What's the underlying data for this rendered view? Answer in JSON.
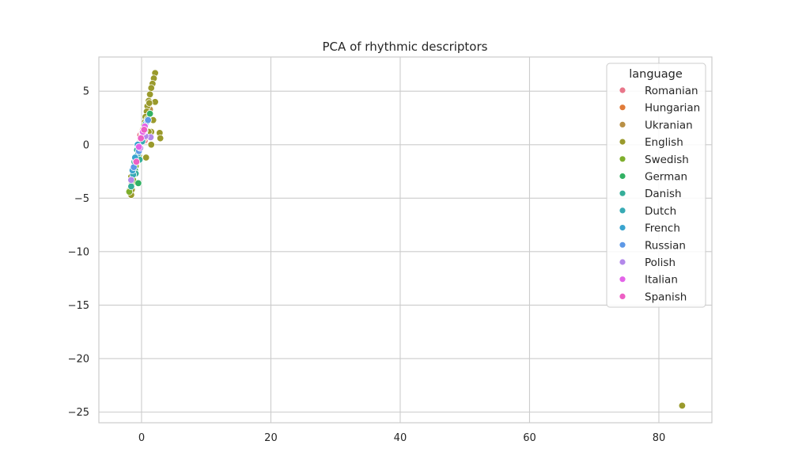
{
  "chart_data": {
    "type": "scatter",
    "title": "PCA of rhythmic descriptors",
    "xlabel": "",
    "ylabel": "",
    "xlim": [
      -6.6,
      88.2
    ],
    "ylim": [
      -26.0,
      8.2
    ],
    "xticks": [
      0,
      20,
      40,
      60,
      80
    ],
    "yticks": [
      5,
      0,
      -5,
      -10,
      -15,
      -20,
      -25
    ],
    "xtick_labels": [
      "0",
      "20",
      "40",
      "60",
      "80"
    ],
    "ytick_labels": [
      "5",
      "0",
      "−5",
      "−10",
      "−15",
      "−20",
      "−25"
    ],
    "grid": true,
    "legend": {
      "title": "language",
      "placement": "top-right"
    },
    "series": [
      {
        "name": "Romanian",
        "color": "#e8768a",
        "points": [
          [
            0.6,
            2.2
          ],
          [
            0.9,
            2.6
          ],
          [
            0.3,
            1.6
          ],
          [
            -0.2,
            0.9
          ],
          [
            -0.6,
            -0.6
          ],
          [
            -1.0,
            -1.9
          ],
          [
            0.5,
            0.4
          ],
          [
            -1.4,
            -3.1
          ]
        ]
      },
      {
        "name": "Hungarian",
        "color": "#e07b39",
        "points": [
          [
            0.3,
            1.6
          ],
          [
            0.5,
            1.9
          ],
          [
            0.7,
            2.3
          ],
          [
            0.1,
            1.1
          ],
          [
            0.8,
            2.5
          ]
        ]
      },
      {
        "name": "Ukranian",
        "color": "#b99046",
        "points": [
          [
            0.2,
            1.4
          ],
          [
            0.8,
            2.1
          ],
          [
            1.1,
            2.9
          ],
          [
            -0.3,
            0.2
          ],
          [
            -0.8,
            -1.3
          ],
          [
            -1.2,
            -2.6
          ],
          [
            0.4,
            0.6
          ],
          [
            1.3,
            3.3
          ]
        ]
      },
      {
        "name": "English",
        "color": "#9a9a2c",
        "points": [
          [
            2.1,
            6.7
          ],
          [
            1.9,
            6.2
          ],
          [
            1.7,
            5.7
          ],
          [
            1.5,
            5.3
          ],
          [
            1.3,
            4.7
          ],
          [
            1.1,
            4.1
          ],
          [
            2.1,
            4.0
          ],
          [
            0.9,
            3.6
          ],
          [
            1.2,
            3.9
          ],
          [
            0.8,
            3.1
          ],
          [
            0.6,
            2.6
          ],
          [
            0.5,
            2.1
          ],
          [
            0.3,
            1.5
          ],
          [
            0.1,
            0.9
          ],
          [
            1.8,
            2.3
          ],
          [
            1.5,
            1.2
          ],
          [
            1.1,
            1.2
          ],
          [
            2.8,
            1.1
          ],
          [
            2.9,
            0.6
          ],
          [
            1.5,
            0.0
          ],
          [
            -0.1,
            0.5
          ],
          [
            -0.3,
            -0.1
          ],
          [
            -0.5,
            -0.5
          ],
          [
            -0.4,
            -1.0
          ],
          [
            -0.7,
            -1.3
          ],
          [
            -0.9,
            -1.7
          ],
          [
            0.7,
            -1.2
          ],
          [
            -1.1,
            -2.2
          ],
          [
            -1.2,
            -2.8
          ],
          [
            -1.6,
            -3.0
          ],
          [
            -1.5,
            -3.6
          ],
          [
            -1.7,
            -4.1
          ],
          [
            -1.9,
            -4.3
          ],
          [
            -1.5,
            -4.2
          ],
          [
            -1.6,
            -4.7
          ],
          [
            83.6,
            -24.4
          ]
        ]
      },
      {
        "name": "Swedish",
        "color": "#7eae2c",
        "points": [
          [
            0.4,
            1.8
          ],
          [
            -0.6,
            -0.9
          ],
          [
            -1.3,
            -3.3
          ],
          [
            0.9,
            2.4
          ],
          [
            -1.9,
            -4.4
          ],
          [
            0.2,
            0.7
          ],
          [
            -0.9,
            -2.0
          ]
        ]
      },
      {
        "name": "German",
        "color": "#32b163",
        "points": [
          [
            -0.5,
            -3.6
          ],
          [
            -1.0,
            -2.4
          ],
          [
            0.2,
            1.0
          ],
          [
            1.3,
            2.9
          ],
          [
            -0.6,
            -0.4
          ]
        ]
      },
      {
        "name": "Danish",
        "color": "#35ae99",
        "points": [
          [
            -0.7,
            -0.5
          ],
          [
            -1.1,
            -1.6
          ],
          [
            -1.6,
            -3.9
          ],
          [
            0.5,
            1.3
          ],
          [
            -0.9,
            -2.7
          ],
          [
            -0.3,
            -1.4
          ]
        ]
      },
      {
        "name": "Dutch",
        "color": "#37aab4",
        "points": [
          [
            -0.9,
            -1.5
          ],
          [
            -1.3,
            -2.8
          ],
          [
            0.1,
            0.3
          ],
          [
            -0.5,
            -0.8
          ],
          [
            0.7,
            2.0
          ]
        ]
      },
      {
        "name": "French",
        "color": "#3aa4cf",
        "points": [
          [
            -1.0,
            -1.2
          ],
          [
            -1.4,
            -2.4
          ],
          [
            0.2,
            0.8
          ],
          [
            -0.6,
            0.0
          ],
          [
            0.9,
            2.2
          ]
        ]
      },
      {
        "name": "Russian",
        "color": "#5d98e6",
        "points": [
          [
            -1.2,
            -2.1
          ],
          [
            0.4,
            1.1
          ],
          [
            -0.4,
            -0.6
          ],
          [
            1.0,
            2.3
          ]
        ]
      },
      {
        "name": "Polish",
        "color": "#b388ea",
        "points": [
          [
            1.4,
            0.7
          ],
          [
            0.6,
            0.8
          ],
          [
            -1.6,
            -3.3
          ],
          [
            -0.2,
            -0.3
          ],
          [
            0.3,
            1.2
          ]
        ]
      },
      {
        "name": "Italian",
        "color": "#e364e8",
        "points": [
          [
            0.2,
            1.2
          ],
          [
            -0.4,
            -0.2
          ],
          [
            0.5,
            1.7
          ]
        ]
      },
      {
        "name": "Spanish",
        "color": "#ed5fc4",
        "points": [
          [
            -0.1,
            0.6
          ],
          [
            0.4,
            1.4
          ],
          [
            -0.8,
            -1.6
          ]
        ]
      }
    ]
  }
}
